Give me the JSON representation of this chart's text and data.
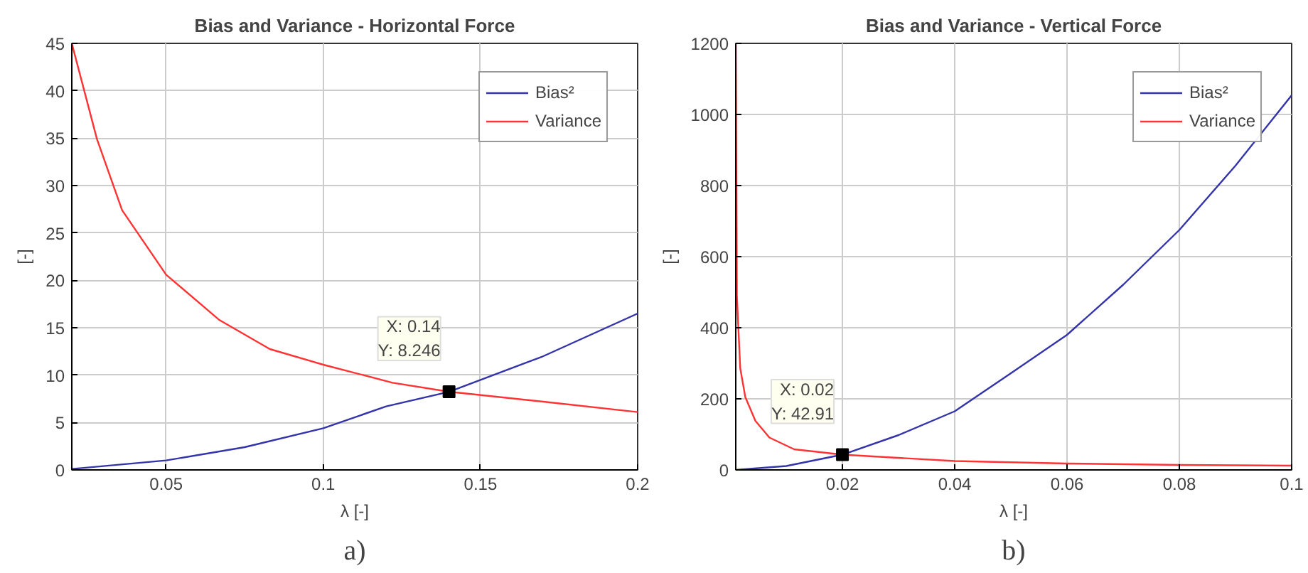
{
  "chart_data": [
    {
      "type": "line",
      "title": "Bias and Variance - Horizontal Force",
      "xlabel": "λ [-]",
      "ylabel": "[-]",
      "xlim": [
        0.02,
        0.2
      ],
      "xticks": [
        0.05,
        0.1,
        0.15,
        0.2
      ],
      "ylim": [
        0,
        45
      ],
      "yticks": [
        0,
        5,
        10,
        15,
        20,
        25,
        30,
        35,
        40,
        45
      ],
      "grid": true,
      "legend": "top right",
      "marker": "none",
      "line_style": "solid",
      "series": [
        {
          "name": "Bias²",
          "color": "#3333aa",
          "x": [
            0.02,
            0.05,
            0.075,
            0.1,
            0.12,
            0.14,
            0.17,
            0.18,
            0.2
          ],
          "values": [
            0.1,
            1.0,
            2.4,
            4.4,
            6.7,
            8.246,
            12.0,
            13.5,
            16.5
          ]
        },
        {
          "name": "Variance",
          "color": "#ff3333",
          "x": [
            0.02,
            0.028,
            0.036,
            0.05,
            0.067,
            0.083,
            0.1,
            0.122,
            0.14,
            0.17,
            0.2
          ],
          "values": [
            45,
            34.9,
            27.4,
            20.6,
            15.8,
            12.75,
            11.1,
            9.2,
            8.246,
            7.2,
            6.1
          ]
        }
      ],
      "annotations": [
        {
          "text": "X: 0.14\nY: 8.246",
          "x": 0.14,
          "y": 8.246
        },
        "a)"
      ]
    },
    {
      "type": "line",
      "title": "Bias and Variance - Vertical Force",
      "xlabel": "λ [-]",
      "ylabel": "[-]",
      "xlim": [
        0.001,
        0.1
      ],
      "xticks": [
        0.02,
        0.04,
        0.06,
        0.08,
        0.1
      ],
      "ylim": [
        0,
        1200
      ],
      "yticks": [
        0,
        200,
        400,
        600,
        800,
        1000,
        1200
      ],
      "grid": true,
      "legend": "top right",
      "marker": "none",
      "line_style": "solid",
      "series": [
        {
          "name": "Bias²",
          "color": "#3333aa",
          "x": [
            0.001,
            0.01,
            0.02,
            0.03,
            0.04,
            0.05,
            0.06,
            0.07,
            0.08,
            0.09,
            0.1
          ],
          "values": [
            0,
            11,
            42.91,
            98,
            165,
            272,
            380,
            521,
            675,
            856,
            1054
          ]
        },
        {
          "name": "Variance",
          "color": "#ff3333",
          "x": [
            0.001,
            0.0012,
            0.0018,
            0.0027,
            0.0045,
            0.007,
            0.0114,
            0.02,
            0.04,
            0.06,
            0.08,
            0.1
          ],
          "values": [
            1200,
            490,
            286,
            205,
            138,
            91,
            58,
            42.91,
            25,
            18,
            14,
            12
          ]
        }
      ],
      "annotations": [
        {
          "text": "X: 0.02\nY: 42.91",
          "x": 0.02,
          "y": 42.91
        },
        "b)"
      ]
    }
  ]
}
